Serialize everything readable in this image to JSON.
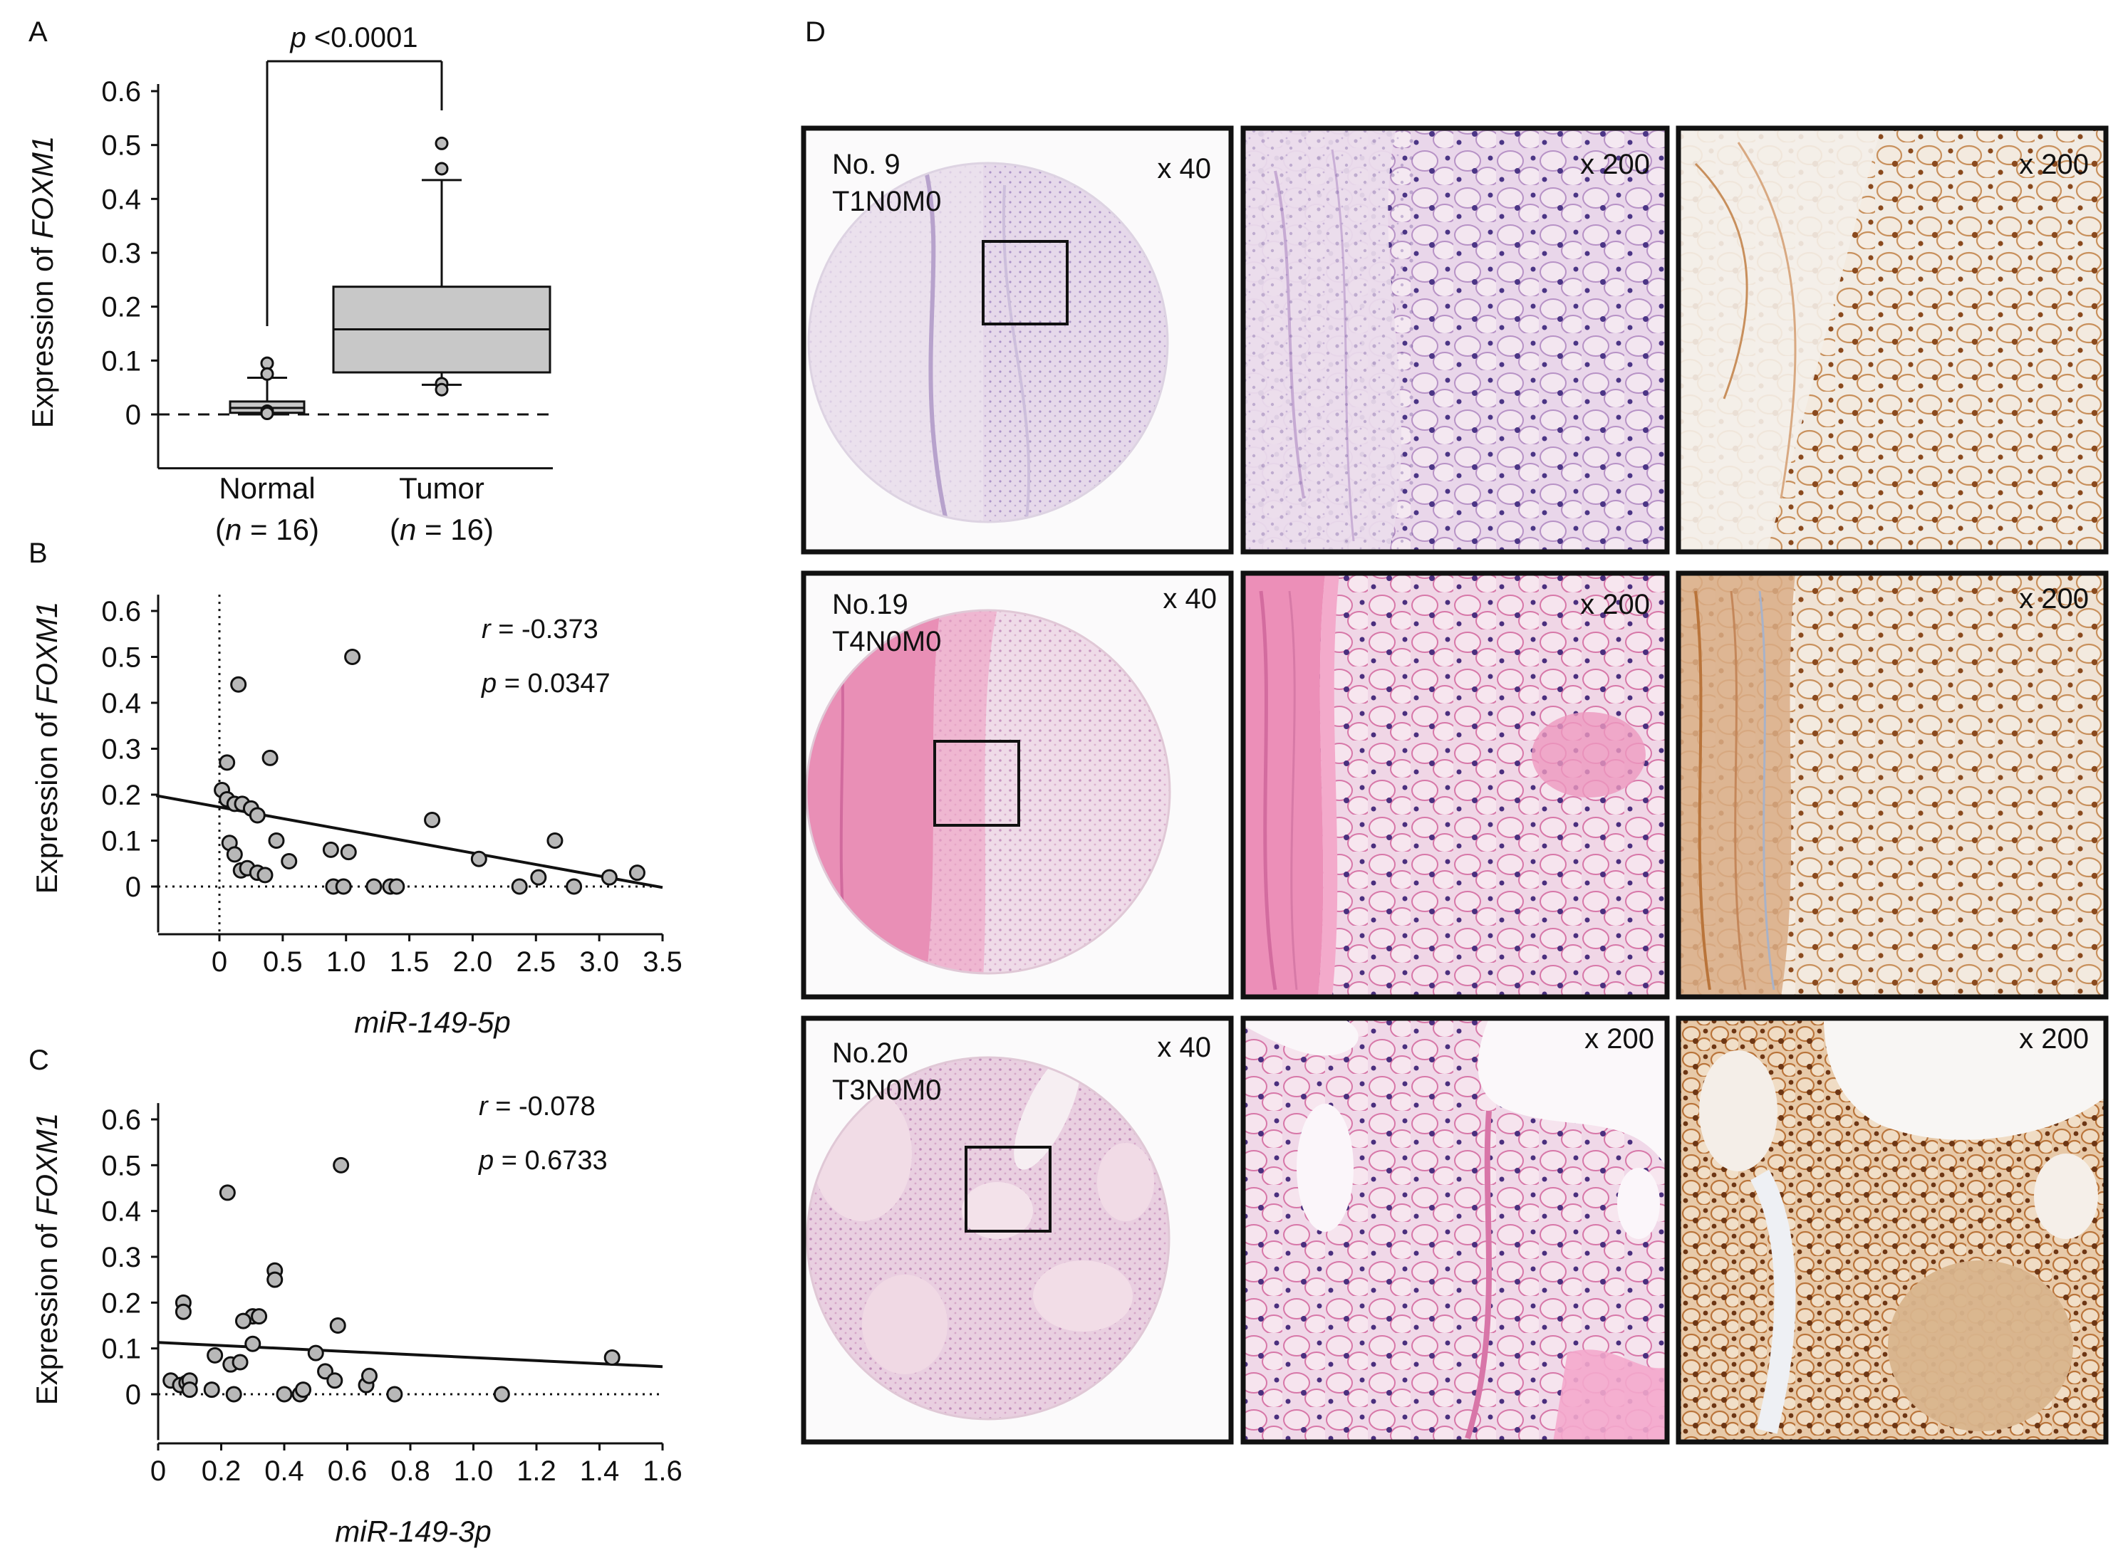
{
  "panel_labels": {
    "A": "A",
    "B": "B",
    "C": "C",
    "D": "D"
  },
  "chart_data": [
    {
      "id": "A",
      "type": "box",
      "ylabel_prefix": "Expression of ",
      "ylabel_gene": "FOXM1",
      "yticks": [
        0,
        0.1,
        0.2,
        0.3,
        0.4,
        0.5,
        0.6
      ],
      "ytick_labels": [
        "0",
        "0.1",
        "0.2",
        "0.3",
        "0.4",
        "0.5",
        "0.6"
      ],
      "ylim": [
        -0.1,
        0.6
      ],
      "reference_line": 0,
      "significance": {
        "p_italic": "p",
        "text": " <0.0001"
      },
      "groups": [
        {
          "name": "Normal",
          "n_open": "(",
          "n_italic": "n",
          "n_rest": " = 16)",
          "whisker_low": 0.0,
          "q1": 0.003,
          "median": 0.012,
          "q3": 0.024,
          "whisker_high": 0.068,
          "outliers": [
            0.095,
            0.075,
            0.006,
            0.002
          ]
        },
        {
          "name": "Tumor",
          "n_open": "(",
          "n_italic": "n",
          "n_rest": " = 16)",
          "whisker_low": 0.055,
          "q1": 0.078,
          "median": 0.158,
          "q3": 0.237,
          "whisker_high": 0.435,
          "outliers": [
            0.503,
            0.456,
            0.057,
            0.046
          ]
        }
      ]
    },
    {
      "id": "B",
      "type": "scatter",
      "ylabel_prefix": "Expression of ",
      "ylabel_gene": "FOXM1",
      "xlabel": "miR-149-5p",
      "xlim": [
        -0.5,
        3.5
      ],
      "ylim": [
        -0.1,
        0.62
      ],
      "xticks": [
        0,
        0.5,
        1.0,
        1.5,
        2.0,
        2.5,
        3.0,
        3.5
      ],
      "xtick_labels": [
        "0",
        "0.5",
        "1.0",
        "1.5",
        "2.0",
        "2.5",
        "3.0",
        "3.5"
      ],
      "yticks": [
        0,
        0.1,
        0.2,
        0.3,
        0.4,
        0.5,
        0.6
      ],
      "ytick_labels": [
        "0",
        "0.1",
        "0.2",
        "0.3",
        "0.4",
        "0.5",
        "0.6"
      ],
      "vline_x": 0,
      "hline_y": 0,
      "r_italic": "r",
      "r_value": " = -0.373",
      "p_italic": "p",
      "p_value": " = 0.0347",
      "fit": {
        "slope": -0.05,
        "intercept": 0.173
      },
      "points": [
        [
          0.02,
          0.21
        ],
        [
          0.06,
          0.27
        ],
        [
          0.15,
          0.44
        ],
        [
          0.4,
          0.28
        ],
        [
          1.05,
          0.5
        ],
        [
          0.06,
          0.19
        ],
        [
          0.12,
          0.18
        ],
        [
          0.18,
          0.18
        ],
        [
          0.25,
          0.17
        ],
        [
          0.3,
          0.155
        ],
        [
          0.08,
          0.095
        ],
        [
          0.12,
          0.07
        ],
        [
          0.17,
          0.035
        ],
        [
          0.22,
          0.04
        ],
        [
          0.3,
          0.03
        ],
        [
          0.36,
          0.025
        ],
        [
          0.45,
          0.1
        ],
        [
          0.55,
          0.055
        ],
        [
          0.88,
          0.08
        ],
        [
          1.02,
          0.075
        ],
        [
          0.9,
          0.0
        ],
        [
          0.98,
          0.0
        ],
        [
          1.22,
          0.0
        ],
        [
          1.35,
          0.0
        ],
        [
          1.4,
          0.0
        ],
        [
          1.68,
          0.145
        ],
        [
          2.05,
          0.06
        ],
        [
          2.37,
          0.0
        ],
        [
          2.52,
          0.02
        ],
        [
          2.65,
          0.1
        ],
        [
          2.8,
          0.0
        ],
        [
          3.08,
          0.02
        ],
        [
          3.3,
          0.03
        ]
      ]
    },
    {
      "id": "C",
      "type": "scatter",
      "ylabel_prefix": "Expression of ",
      "ylabel_gene": "FOXM1",
      "xlabel": "miR-149-3p",
      "xlim": [
        0,
        1.6
      ],
      "ylim": [
        -0.1,
        0.62
      ],
      "xticks": [
        0,
        0.2,
        0.4,
        0.6,
        0.8,
        1.0,
        1.2,
        1.4,
        1.6
      ],
      "xtick_labels": [
        "0",
        "0.2",
        "0.4",
        "0.6",
        "0.8",
        "1.0",
        "1.2",
        "1.4",
        "1.6"
      ],
      "yticks": [
        0,
        0.1,
        0.2,
        0.3,
        0.4,
        0.5,
        0.6
      ],
      "ytick_labels": [
        "0",
        "0.1",
        "0.2",
        "0.3",
        "0.4",
        "0.5",
        "0.6"
      ],
      "hline_y": 0,
      "r_italic": "r",
      "r_value": " = -0.078",
      "p_italic": "p",
      "p_value": " = 0.6733",
      "fit": {
        "slope": -0.033,
        "intercept": 0.113
      },
      "points": [
        [
          0.58,
          0.5
        ],
        [
          0.22,
          0.44
        ],
        [
          0.37,
          0.27
        ],
        [
          0.37,
          0.25
        ],
        [
          0.08,
          0.2
        ],
        [
          0.08,
          0.18
        ],
        [
          0.3,
          0.17
        ],
        [
          0.32,
          0.17
        ],
        [
          0.27,
          0.16
        ],
        [
          0.57,
          0.15
        ],
        [
          0.3,
          0.11
        ],
        [
          0.5,
          0.09
        ],
        [
          0.18,
          0.085
        ],
        [
          0.23,
          0.065
        ],
        [
          0.26,
          0.07
        ],
        [
          0.53,
          0.05
        ],
        [
          0.04,
          0.03
        ],
        [
          0.07,
          0.02
        ],
        [
          0.09,
          0.025
        ],
        [
          0.1,
          0.03
        ],
        [
          0.1,
          0.01
        ],
        [
          0.17,
          0.01
        ],
        [
          0.24,
          0.0
        ],
        [
          0.4,
          0.0
        ],
        [
          0.45,
          0.0
        ],
        [
          0.46,
          0.01
        ],
        [
          0.56,
          0.03
        ],
        [
          0.66,
          0.02
        ],
        [
          0.67,
          0.04
        ],
        [
          0.75,
          0.0
        ],
        [
          1.09,
          0.0
        ],
        [
          1.44,
          0.08
        ]
      ]
    }
  ],
  "tissue_panels": {
    "rows": [
      {
        "sample": "No. 9",
        "stage": "T1N0M0",
        "mag_low": "x 40",
        "mag_he": "x 200",
        "mag_ihc": "x 200"
      },
      {
        "sample": "No.19",
        "stage": "T4N0M0",
        "mag_low": "x 40",
        "mag_he": "x 200",
        "mag_ihc": "x 200"
      },
      {
        "sample": "No.20",
        "stage": "T3N0M0",
        "mag_low": "x 40",
        "mag_he": "x 200",
        "mag_ihc": "x 200"
      }
    ],
    "colors": {
      "he_pale": "#e8d2e4",
      "he_purple": "#a58ac2",
      "he_pink": "#e78fb8",
      "ihc_bg": "#efe4d8",
      "ihc_brown": "#b9743a",
      "nucleus": "#45327a"
    }
  }
}
